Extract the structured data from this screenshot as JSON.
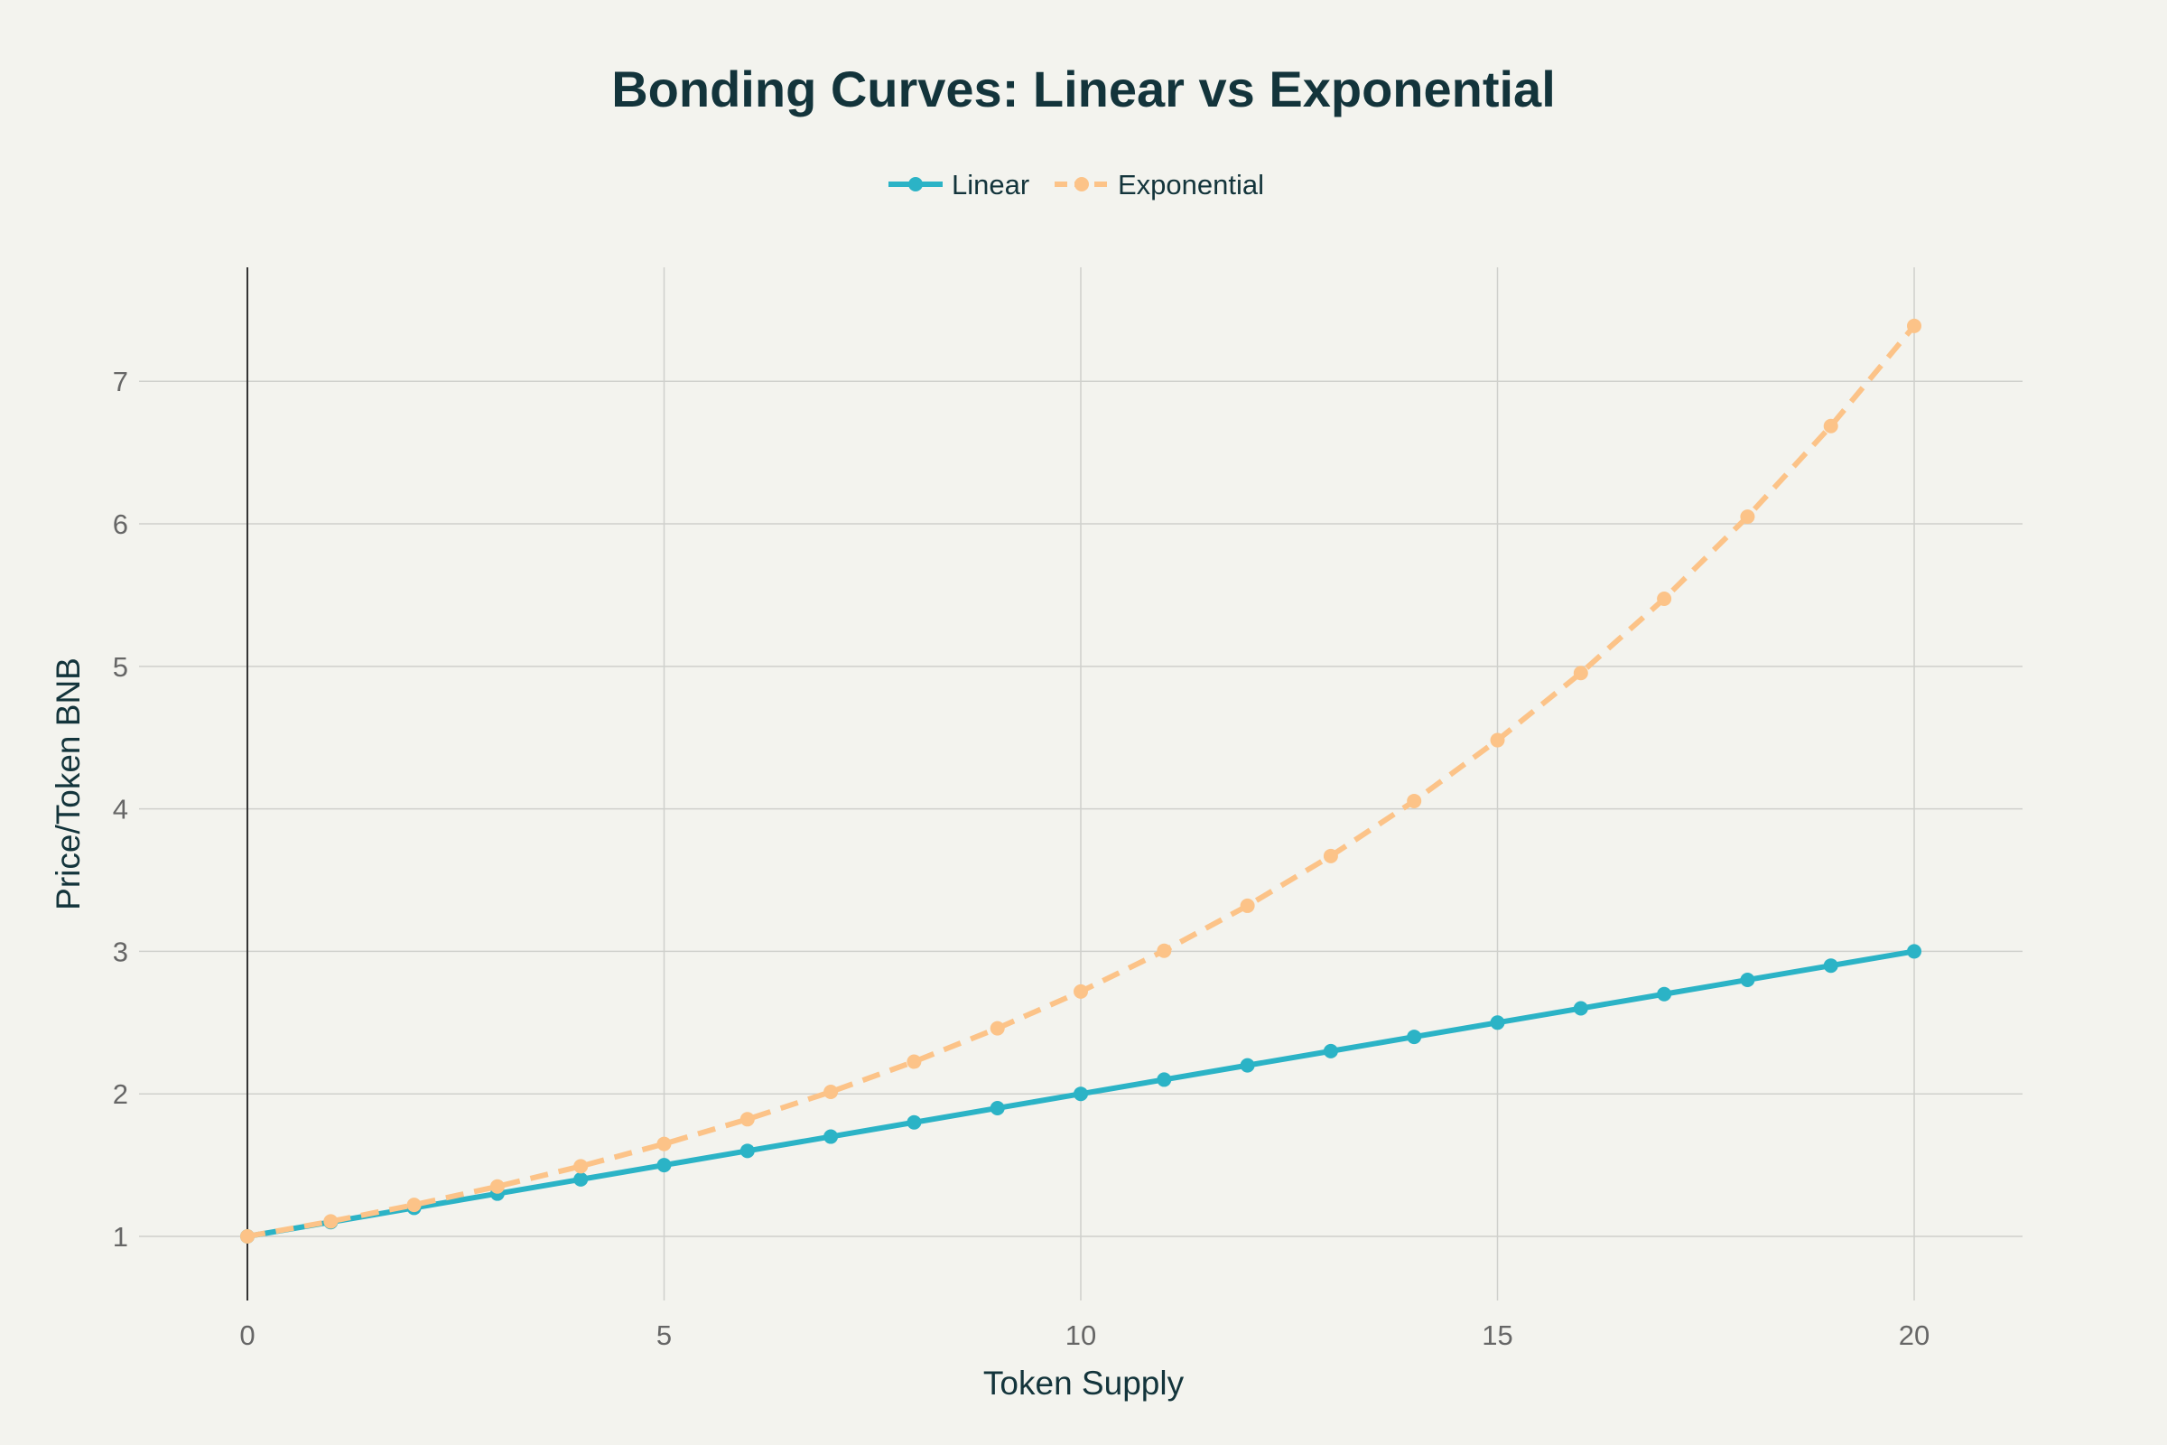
{
  "chart_data": {
    "type": "line",
    "title": "Bonding Curves: Linear vs Exponential",
    "xlabel": "Token Supply",
    "ylabel": "Price/Token BNB",
    "xlim": [
      -1.3,
      21.3
    ],
    "ylim": [
      0.55,
      7.8
    ],
    "xticks": [
      0,
      5,
      10,
      15,
      20
    ],
    "yticks": [
      1,
      2,
      3,
      4,
      5,
      6,
      7
    ],
    "grid": true,
    "legend_position": "top-center",
    "x": [
      0,
      1,
      2,
      3,
      4,
      5,
      6,
      7,
      8,
      9,
      10,
      11,
      12,
      13,
      14,
      15,
      16,
      17,
      18,
      19,
      20
    ],
    "series": [
      {
        "name": "Linear",
        "color": "#2bb3c6",
        "style": "solid",
        "values": [
          1.0,
          1.1,
          1.2,
          1.3,
          1.4,
          1.5,
          1.6,
          1.7,
          1.8,
          1.9,
          2.0,
          2.1,
          2.2,
          2.3,
          2.4,
          2.5,
          2.6,
          2.7,
          2.8,
          2.9,
          3.0
        ]
      },
      {
        "name": "Exponential",
        "color": "#fcc388",
        "style": "dashed",
        "values": [
          1.0,
          1.105,
          1.221,
          1.35,
          1.492,
          1.649,
          1.822,
          2.014,
          2.226,
          2.46,
          2.718,
          3.004,
          3.32,
          3.669,
          4.055,
          4.482,
          4.953,
          5.474,
          6.05,
          6.686,
          7.389
        ]
      }
    ]
  }
}
